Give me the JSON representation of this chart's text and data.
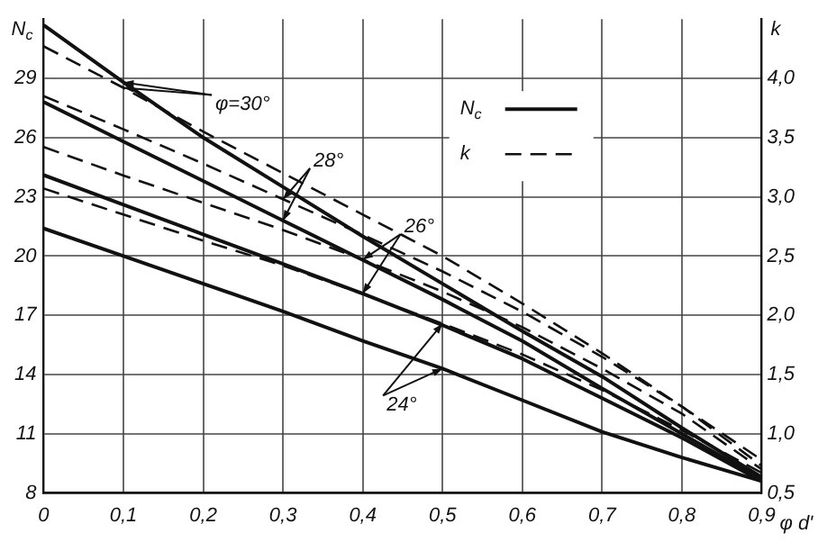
{
  "chart_data": {
    "type": "line",
    "ylabel": "N$_{c}$",
    "y2label": "k",
    "xlabel": "φ d'",
    "x": [
      0,
      0.1,
      0.2,
      0.3,
      0.4,
      0.5,
      0.6,
      0.7,
      0.8,
      0.9
    ],
    "xlim": [
      0,
      0.9
    ],
    "xticks": [
      0,
      {
        "value": 0.1,
        "label": "0,1"
      },
      {
        "value": 0.2,
        "label": "0,2"
      },
      {
        "value": 0.3,
        "label": "0,3"
      },
      {
        "value": 0.4,
        "label": "0,4"
      },
      {
        "value": 0.5,
        "label": "0,5"
      },
      {
        "value": 0.6,
        "label": "0,6"
      },
      {
        "value": 0.7,
        "label": "0,7"
      },
      {
        "value": 0.8,
        "label": "0,8"
      },
      {
        "value": 0.9,
        "label": "0,9"
      }
    ],
    "ylim": [
      8,
      32
    ],
    "yticks": [
      8,
      11,
      14,
      17,
      20,
      23,
      26,
      29
    ],
    "y2lim": [
      0.5,
      4.5
    ],
    "y2ticks": [
      {
        "value": 0.5,
        "label": "0,5"
      },
      {
        "value": 1,
        "label": "1,0"
      },
      {
        "value": 1.5,
        "label": "1,5"
      },
      {
        "value": 2,
        "label": "2,0"
      },
      {
        "value": 2.5,
        "label": "2,5"
      },
      {
        "value": 3,
        "label": "3,0"
      },
      {
        "value": 3.5,
        "label": "3,5"
      },
      {
        "value": 4,
        "label": "4,0"
      }
    ],
    "series": [
      {
        "name": "N$_{c}$",
        "color": "#111111",
        "line_style": "solid",
        "values": [
          31.7,
          28.8,
          26.0,
          23.5,
          21.0,
          18.6,
          16.2,
          13.9,
          11.3,
          8.8
        ]
      },
      {
        "color": "#111111",
        "line_style": "solid",
        "values": [
          27.8,
          25.8,
          23.8,
          21.8,
          19.8,
          17.8,
          15.7,
          13.3,
          11.0,
          8.7
        ]
      },
      {
        "color": "#111111",
        "line_style": "solid",
        "values": [
          24.1,
          22.6,
          21.1,
          19.6,
          18.1,
          16.5,
          14.8,
          12.8,
          10.8,
          8.6
        ]
      },
      {
        "color": "#111111",
        "line_style": "solid",
        "values": [
          21.4,
          20.0,
          18.6,
          17.2,
          15.7,
          14.3,
          12.7,
          11.1,
          9.8,
          8.6
        ]
      },
      {
        "name": "k",
        "color": "#111111",
        "line_style": "dashed",
        "axis": "y2",
        "values": [
          4.27,
          3.92,
          3.55,
          3.2,
          2.85,
          2.5,
          2.1,
          1.68,
          1.23,
          0.78
        ]
      },
      {
        "color": "#111111",
        "line_style": "dashed",
        "axis": "y2",
        "values": [
          3.85,
          3.57,
          3.28,
          2.98,
          2.68,
          2.37,
          2.03,
          1.65,
          1.23,
          0.73
        ]
      },
      {
        "color": "#111111",
        "line_style": "dashed",
        "axis": "y2",
        "values": [
          3.42,
          3.18,
          2.95,
          2.72,
          2.47,
          2.2,
          1.9,
          1.55,
          1.17,
          0.7
        ]
      },
      {
        "color": "#111111",
        "line_style": "dashed",
        "axis": "y2",
        "values": [
          3.07,
          2.85,
          2.63,
          2.42,
          2.18,
          1.93,
          1.67,
          1.37,
          1.03,
          0.67
        ]
      }
    ],
    "annotations": [
      {
        "text": "φ=30°",
        "x": 0.1,
        "y": 28.8
      },
      {
        "text": "28°",
        "x": 0.3,
        "y": 21.8
      },
      {
        "text": "26°",
        "x": 0.4,
        "y": 18.1
      },
      {
        "text": "24°",
        "x": 0.5,
        "y": 14.3
      }
    ],
    "grid": true,
    "legend": "top right",
    "marker": "none"
  }
}
